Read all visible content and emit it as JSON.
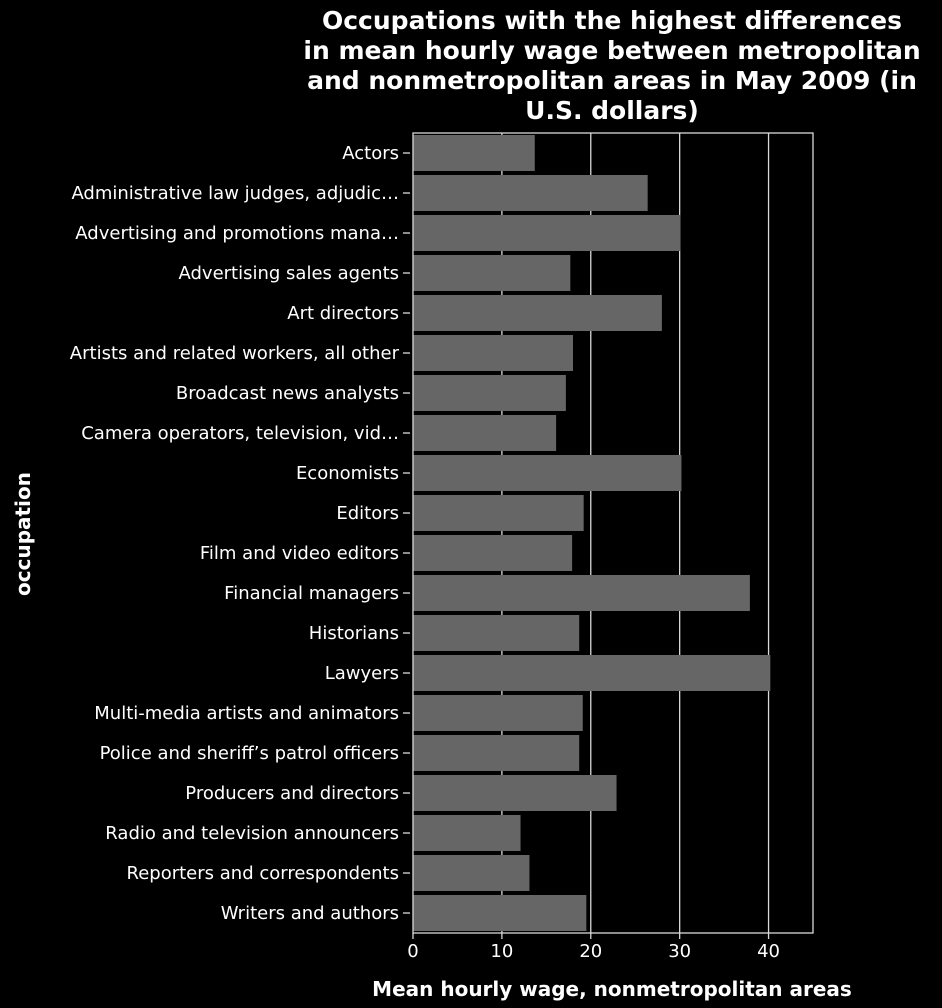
{
  "chart_data": {
    "type": "bar",
    "orientation": "horizontal",
    "title": "Occupations with the highest differences in mean hourly wage between metropolitan and nonmetropolitan areas in May 2009 (in U.S. dollars)",
    "title_lines": [
      "Occupations with the highest differences",
      "in mean hourly wage between metropolitan",
      "and nonmetropolitan areas in May 2009 (in",
      "U.S. dollars)"
    ],
    "xlabel": "Mean hourly wage, nonmetropolitan areas",
    "ylabel": "occupation",
    "xlim": [
      0,
      45
    ],
    "xticks": [
      0,
      10,
      20,
      30,
      40
    ],
    "grid": true,
    "colors": {
      "background": "#000000",
      "bar": "#666666",
      "text": "#ffffff",
      "grid": "#d9d9d9"
    },
    "categories": [
      "Actors",
      "Administrative law judges, adjudic…",
      "Advertising and promotions mana…",
      "Advertising sales agents",
      "Art directors",
      "Artists and related workers, all other",
      "Broadcast news analysts",
      "Camera operators, television, vid…",
      "Economists",
      "Editors",
      "Film and video editors",
      "Financial managers",
      "Historians",
      "Lawyers",
      "Multi-media artists and animators",
      "Police and sheriff’s patrol officers",
      "Producers and directors",
      "Radio and television announcers",
      "Reporters and correspondents",
      "Writers and authors"
    ],
    "values": [
      13.7,
      26.4,
      30.1,
      17.7,
      28.0,
      18.0,
      17.2,
      16.1,
      30.2,
      19.2,
      17.9,
      37.9,
      18.7,
      40.2,
      19.1,
      18.7,
      22.9,
      12.1,
      13.1,
      19.5
    ]
  }
}
